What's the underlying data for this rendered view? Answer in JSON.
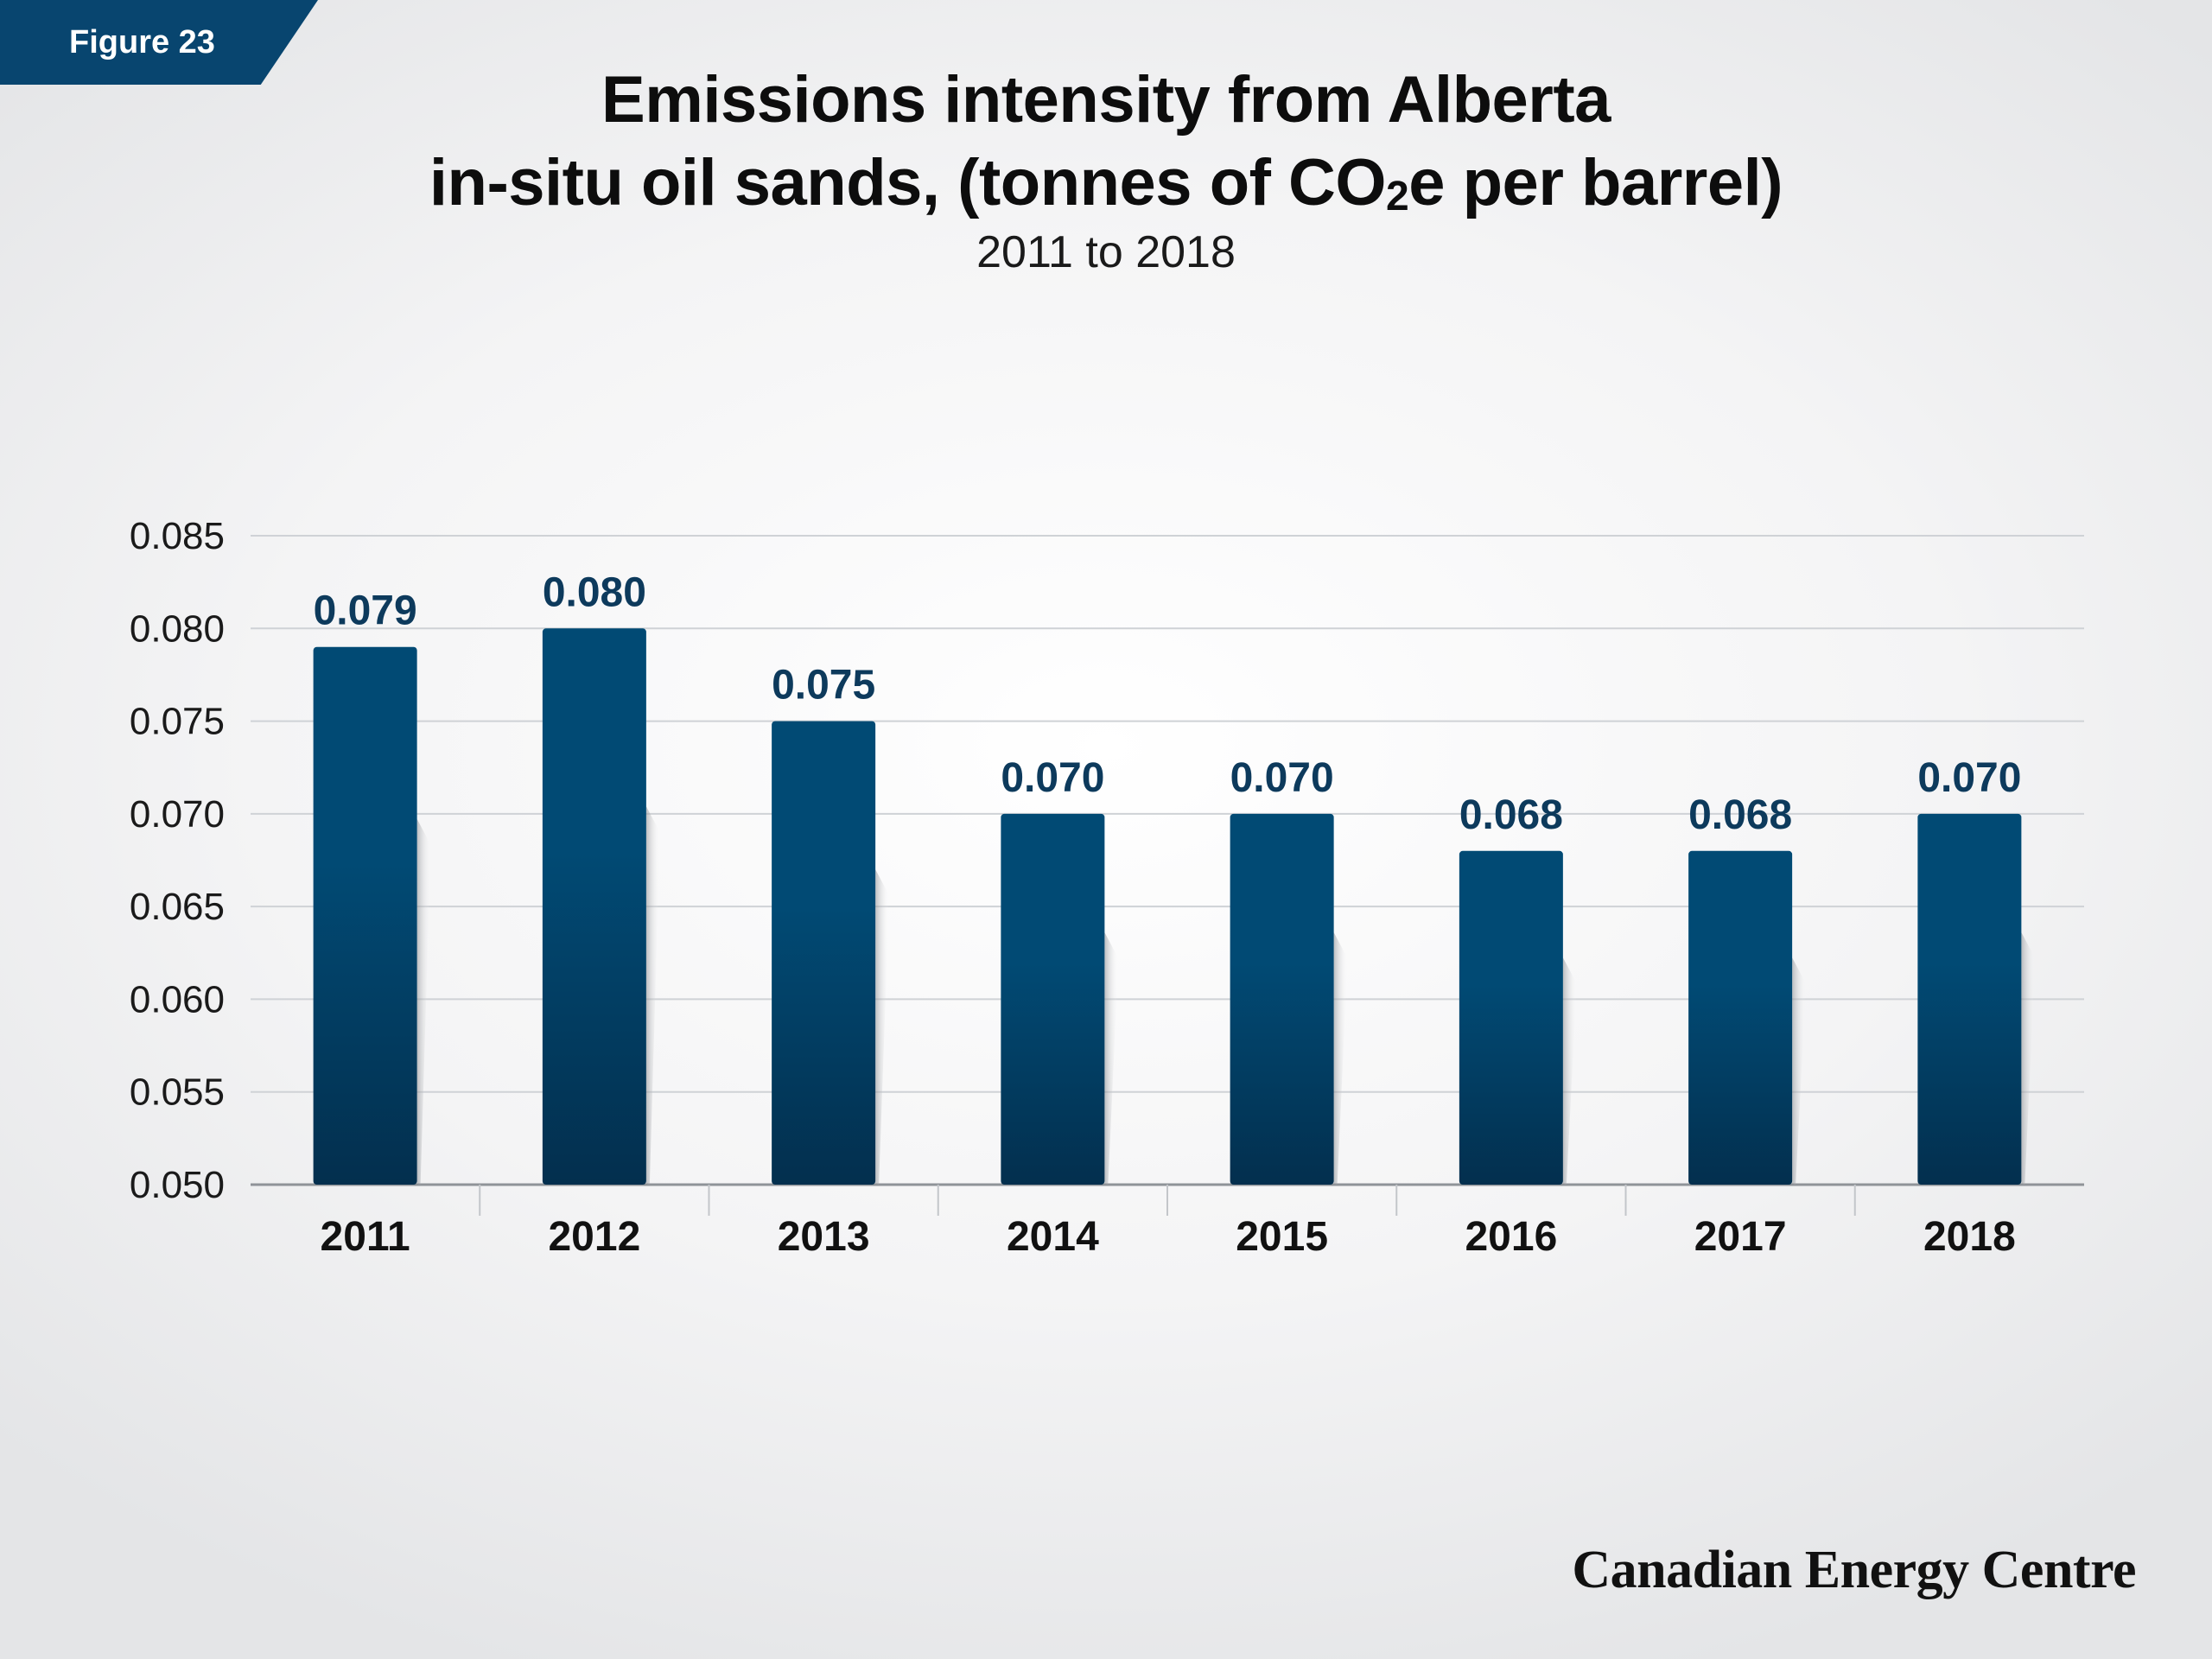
{
  "figure_label": "Figure 23",
  "title_line1": "Emissions intensity from Alberta",
  "title_line2_prefix": "in-situ oil sands, (tonnes of CO",
  "title_subscript": "2",
  "title_line2_suffix": "e per barrel)",
  "subtitle": "2011 to 2018",
  "brand": "Canadian Energy Centre",
  "colors": {
    "bar_top": "#014a74",
    "bar_bottom": "#032f4e",
    "data_label": "#0d3a5c",
    "badge": "#08456f"
  },
  "chart_data": {
    "type": "bar",
    "categories": [
      "2011",
      "2012",
      "2013",
      "2014",
      "2015",
      "2016",
      "2017",
      "2018"
    ],
    "values": [
      0.079,
      0.08,
      0.075,
      0.07,
      0.07,
      0.068,
      0.068,
      0.07
    ],
    "data_labels": [
      "0.079",
      "0.080",
      "0.075",
      "0.070",
      "0.070",
      "0.068",
      "0.068",
      "0.070"
    ],
    "y_ticks": [
      "0.050",
      "0.055",
      "0.060",
      "0.065",
      "0.070",
      "0.075",
      "0.080",
      "0.085"
    ],
    "ylim": [
      0.05,
      0.085
    ],
    "grid": true
  }
}
